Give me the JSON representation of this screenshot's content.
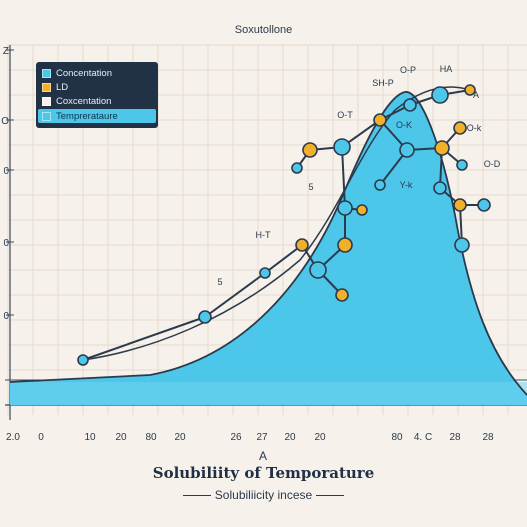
{
  "header": {
    "title": "Soxutollone"
  },
  "footer": {
    "title": "Solubiliity of Temporature",
    "subtitle": "Solubiliicity incese"
  },
  "legend": {
    "items": [
      {
        "label": "Concentation",
        "color": "#4cc7ea",
        "highlight": false
      },
      {
        "label": "LD",
        "color": "#f0b02a",
        "highlight": false
      },
      {
        "label": "Coxcentation",
        "color": "#f6f1ea",
        "highlight": false
      },
      {
        "label": "Temprerataure",
        "color": "#4cc7ea",
        "highlight": true
      }
    ]
  },
  "chart_data": {
    "type": "area",
    "x_tick_labels": [
      "2.0",
      "0",
      "10",
      "20",
      "80",
      "20",
      "26",
      "27",
      "20",
      "20",
      "80",
      "4. C",
      "28",
      "28"
    ],
    "y_tick_labels": [
      "Z",
      "O",
      "0",
      "0",
      "0"
    ],
    "axis_marker": "A",
    "annotations": [
      "SH-P",
      "O-P",
      "HA",
      "A",
      "O-T",
      "O-K",
      "O-k",
      "O-D",
      "Y-k",
      "5",
      "H-T",
      "5"
    ],
    "grid": true,
    "legend_position": "top-left"
  }
}
